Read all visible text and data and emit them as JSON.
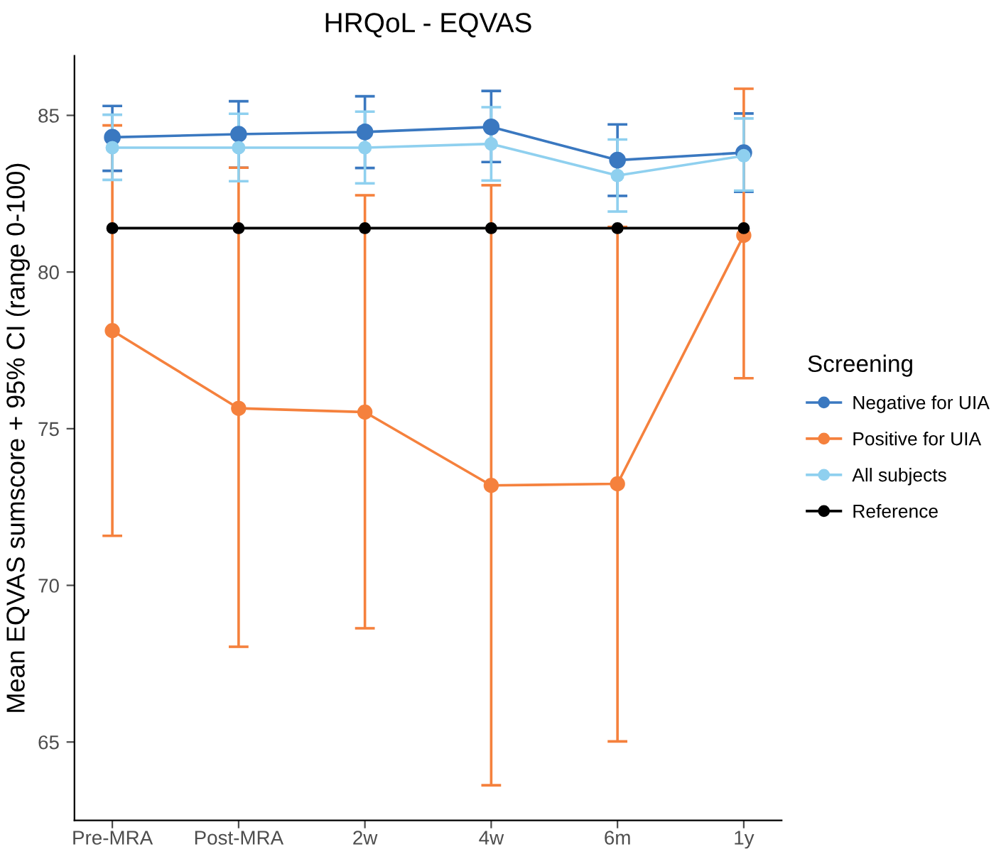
{
  "chart_data": {
    "type": "line",
    "title": "HRQoL - EQVAS",
    "ylabel": "Mean EQVAS sumscore + 95% CI (range 0-100)",
    "legend_title": "Screening",
    "legend": "right",
    "marker": "circle",
    "grid": false,
    "categories": [
      "Pre-MRA",
      "Post-MRA",
      "2w",
      "4w",
      "6m",
      "1y"
    ],
    "ylim": [
      62.5,
      86.9
    ],
    "yticks": [
      65,
      70,
      75,
      80,
      85
    ],
    "series": [
      {
        "name": "Negative for UIA",
        "color": "#3a78c0",
        "values": [
          84.3,
          84.4,
          84.47,
          84.63,
          83.57,
          83.81
        ],
        "errors": [
          [
            83.23,
            85.3
          ],
          [
            83.33,
            85.45
          ],
          [
            83.32,
            85.61
          ],
          [
            83.51,
            85.78
          ],
          [
            82.43,
            84.71
          ],
          [
            82.56,
            85.06
          ]
        ]
      },
      {
        "name": "Positive for UIA",
        "color": "#f5813d",
        "values": [
          78.13,
          75.65,
          75.53,
          73.19,
          73.24,
          81.17
        ],
        "errors": [
          [
            71.58,
            84.68
          ],
          [
            68.04,
            83.33
          ],
          [
            68.63,
            82.45
          ],
          [
            63.62,
            82.77
          ],
          [
            65.02,
            81.44
          ],
          [
            76.61,
            85.85
          ]
        ]
      },
      {
        "name": "All subjects",
        "color": "#8fd0ef",
        "values": [
          83.97,
          83.97,
          83.97,
          84.09,
          83.08,
          83.71
        ],
        "errors": [
          [
            82.94,
            85.02
          ],
          [
            82.9,
            85.05
          ],
          [
            82.83,
            85.12
          ],
          [
            82.92,
            85.26
          ],
          [
            81.93,
            84.23
          ],
          [
            82.6,
            84.9
          ]
        ]
      },
      {
        "name": "Reference",
        "color": "#000000",
        "values": [
          81.4,
          81.4,
          81.4,
          81.4,
          81.4,
          81.4
        ]
      }
    ]
  }
}
